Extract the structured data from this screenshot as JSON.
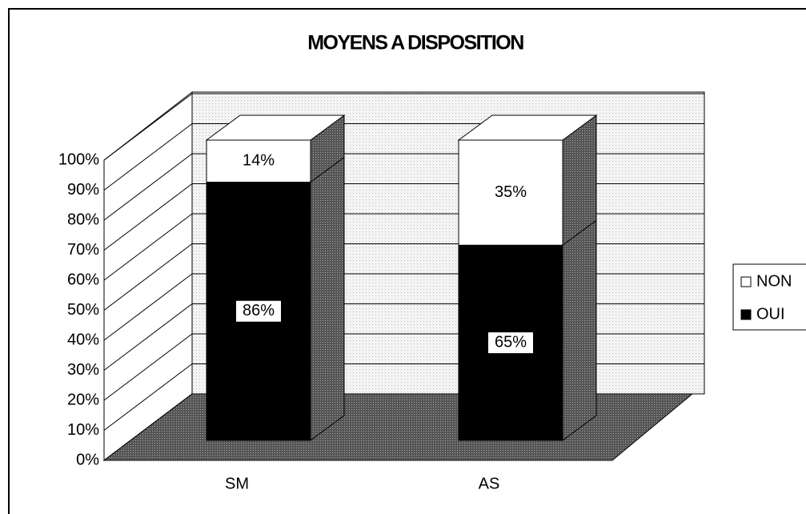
{
  "chart_data": {
    "type": "bar3d_stacked",
    "title": "MOYENS A DISPOSITION",
    "categories": [
      "SM",
      "AS"
    ],
    "series": [
      {
        "name": "OUI",
        "color": "#000000",
        "values": [
          86,
          65
        ],
        "value_labels": [
          "86%",
          "65%"
        ]
      },
      {
        "name": "NON",
        "color": "#ffffff",
        "values": [
          14,
          35
        ],
        "value_labels": [
          "14%",
          "35%"
        ]
      }
    ],
    "ylim": [
      0,
      100
    ],
    "yticks": [
      {
        "value": 0,
        "label": "0%"
      },
      {
        "value": 10,
        "label": "10%"
      },
      {
        "value": 20,
        "label": "20%"
      },
      {
        "value": 30,
        "label": "30%"
      },
      {
        "value": 40,
        "label": "40%"
      },
      {
        "value": 50,
        "label": "50%"
      },
      {
        "value": 60,
        "label": "60%"
      },
      {
        "value": 70,
        "label": "70%"
      },
      {
        "value": 80,
        "label": "80%"
      },
      {
        "value": 90,
        "label": "90%"
      },
      {
        "value": 100,
        "label": "100%"
      }
    ],
    "grid": true,
    "legend": "right"
  }
}
